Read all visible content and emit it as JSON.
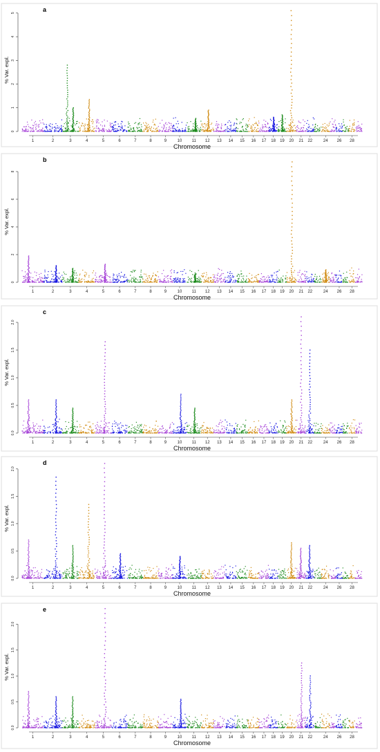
{
  "figure": {
    "xlabel": "Chromosome",
    "ylabel": "% Var. expl.",
    "chromosome_labels": [
      "1",
      "2",
      "3",
      "4",
      "5",
      "6",
      "7",
      "8",
      "9",
      "10",
      "11",
      "12",
      "13",
      "14",
      "15",
      "16",
      "17",
      "18",
      "19",
      "20",
      "21",
      "22",
      "24",
      "26",
      "28"
    ],
    "colors": [
      "#a43fd6",
      "#1515e0",
      "#1c8a1c",
      "#d08a10"
    ]
  },
  "chart_data": [
    {
      "type": "scatter",
      "panel_label": "a",
      "xlabel": "Chromosome",
      "ylabel": "% Var. expl.",
      "ylim": [
        0,
        5.2
      ],
      "yticks": [
        0,
        1,
        2,
        3,
        4,
        5
      ],
      "grid": false,
      "peaks": [
        {
          "chromosome": "3",
          "value": 2.8
        },
        {
          "chromosome": "3",
          "value": 1.0
        },
        {
          "chromosome": "4",
          "value": 1.35
        },
        {
          "chromosome": "11",
          "value": 0.55
        },
        {
          "chromosome": "12",
          "value": 0.9
        },
        {
          "chromosome": "18",
          "value": 0.6
        },
        {
          "chromosome": "19",
          "value": 0.7
        },
        {
          "chromosome": "20",
          "value": 5.1
        }
      ]
    },
    {
      "type": "scatter",
      "panel_label": "b",
      "xlabel": "Chromosome",
      "ylabel": "% Var. expl.",
      "ylim": [
        0,
        8.8
      ],
      "yticks": [
        0,
        2,
        4,
        6,
        8
      ],
      "grid": false,
      "peaks": [
        {
          "chromosome": "1",
          "value": 1.9
        },
        {
          "chromosome": "2",
          "value": 1.2
        },
        {
          "chromosome": "3",
          "value": 1.0
        },
        {
          "chromosome": "5",
          "value": 1.3
        },
        {
          "chromosome": "11",
          "value": 0.6
        },
        {
          "chromosome": "20",
          "value": 8.7
        },
        {
          "chromosome": "24",
          "value": 0.9
        }
      ]
    },
    {
      "type": "scatter",
      "panel_label": "c",
      "xlabel": "Chromosome",
      "ylabel": "% Var. expl.",
      "ylim": [
        0,
        2.2
      ],
      "yticks": [
        "0.0",
        "0.5",
        "1.0",
        "1.5",
        "2.0"
      ],
      "grid": false,
      "peaks": [
        {
          "chromosome": "1",
          "value": 0.6
        },
        {
          "chromosome": "2",
          "value": 0.6
        },
        {
          "chromosome": "3",
          "value": 0.45
        },
        {
          "chromosome": "5",
          "value": 1.65
        },
        {
          "chromosome": "10",
          "value": 0.7
        },
        {
          "chromosome": "11",
          "value": 0.45
        },
        {
          "chromosome": "20",
          "value": 0.6
        },
        {
          "chromosome": "21",
          "value": 2.1
        },
        {
          "chromosome": "22",
          "value": 1.5
        }
      ]
    },
    {
      "type": "scatter",
      "panel_label": "d",
      "xlabel": "Chromosome",
      "ylabel": "% Var. expl.",
      "ylim": [
        0,
        2.2
      ],
      "yticks": [
        "0.0",
        "0.5",
        "1.0",
        "1.5",
        "2.0"
      ],
      "grid": false,
      "peaks": [
        {
          "chromosome": "1",
          "value": 0.7
        },
        {
          "chromosome": "2",
          "value": 1.85
        },
        {
          "chromosome": "3",
          "value": 0.6
        },
        {
          "chromosome": "4",
          "value": 1.35
        },
        {
          "chromosome": "5",
          "value": 2.1
        },
        {
          "chromosome": "6",
          "value": 0.45
        },
        {
          "chromosome": "10",
          "value": 0.4
        },
        {
          "chromosome": "20",
          "value": 0.65
        },
        {
          "chromosome": "21",
          "value": 0.55
        },
        {
          "chromosome": "22",
          "value": 0.6
        }
      ]
    },
    {
      "type": "scatter",
      "panel_label": "e",
      "xlabel": "Chromosome",
      "ylabel": "% Var. expl.",
      "ylim": [
        0,
        2.35
      ],
      "yticks": [
        "0.0",
        "0.5",
        "1.0",
        "1.5",
        "2.0"
      ],
      "grid": false,
      "peaks": [
        {
          "chromosome": "1",
          "value": 0.7
        },
        {
          "chromosome": "2",
          "value": 0.6
        },
        {
          "chromosome": "3",
          "value": 0.6
        },
        {
          "chromosome": "5",
          "value": 2.3
        },
        {
          "chromosome": "10",
          "value": 0.55
        },
        {
          "chromosome": "21",
          "value": 1.25
        },
        {
          "chromosome": "22",
          "value": 1.0
        }
      ]
    }
  ]
}
